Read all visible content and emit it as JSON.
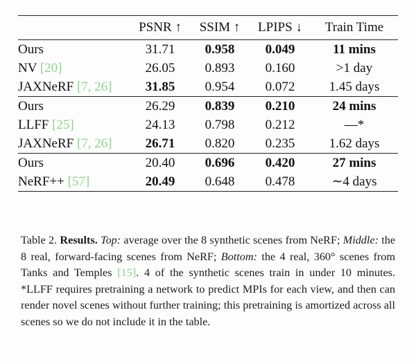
{
  "table": {
    "headers": {
      "psnr": "PSNR ↑",
      "ssim": "SSIM ↑",
      "lpips": "LPIPS ↓",
      "train_time": "Train Time"
    },
    "groups": [
      {
        "rows": [
          {
            "method": "Ours",
            "cite": "",
            "psnr": "31.71",
            "ssim": "0.958",
            "lpips": "0.049",
            "time": "11 mins",
            "bold": [
              "ssim",
              "lpips",
              "time"
            ]
          },
          {
            "method": "NV ",
            "cite": "[20]",
            "psnr": "26.05",
            "ssim": "0.893",
            "lpips": "0.160",
            "time": ">1 day",
            "bold": []
          },
          {
            "method": "JAXNeRF ",
            "cite": "[7, 26]",
            "psnr": "31.85",
            "ssim": "0.954",
            "lpips": "0.072",
            "time": "1.45 days",
            "bold": [
              "psnr"
            ]
          }
        ]
      },
      {
        "rows": [
          {
            "method": "Ours",
            "cite": "",
            "psnr": "26.29",
            "ssim": "0.839",
            "lpips": "0.210",
            "time": "24 mins",
            "bold": [
              "ssim",
              "lpips",
              "time"
            ]
          },
          {
            "method": "LLFF ",
            "cite": "[25]",
            "psnr": "24.13",
            "ssim": "0.798",
            "lpips": "0.212",
            "time": "—*",
            "bold": []
          },
          {
            "method": "JAXNeRF ",
            "cite": "[7, 26]",
            "psnr": "26.71",
            "ssim": "0.820",
            "lpips": "0.235",
            "time": "1.62 days",
            "bold": [
              "psnr"
            ]
          }
        ]
      },
      {
        "rows": [
          {
            "method": "Ours",
            "cite": "",
            "psnr": "20.40",
            "ssim": "0.696",
            "lpips": "0.420",
            "time": "27 mins",
            "bold": [
              "ssim",
              "lpips",
              "time"
            ]
          },
          {
            "method": "NeRF++ ",
            "cite": "[57]",
            "psnr": "20.49",
            "ssim": "0.648",
            "lpips": "0.478",
            "time": "∼4 days",
            "bold": [
              "psnr"
            ]
          }
        ]
      }
    ]
  },
  "caption": {
    "label": "Table 2. ",
    "title": "Results.",
    "top_label": "Top:",
    "top_text": " average over the 8 synthetic scenes from NeRF; ",
    "middle_label": "Middle:",
    "middle_text": " the 8 real, forward-facing scenes from NeRF; ",
    "bottom_label": "Bottom:",
    "bottom_text": " the 4 real, 360° scenes from Tanks and Temples ",
    "cite": "[15]",
    "rest": ". 4 of the synthetic scenes train in under 10 minutes. *LLFF requires pretraining a network to predict MPIs for each view, and then can render novel scenes without further training; this pretraining is amortized across all scenes so we do not include it in the table."
  }
}
